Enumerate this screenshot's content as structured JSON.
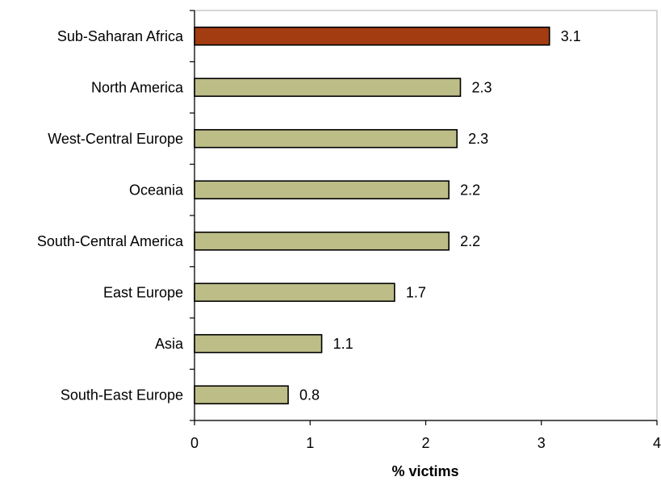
{
  "chart_data": {
    "type": "bar",
    "orientation": "horizontal",
    "categories": [
      "Sub-Saharan Africa",
      "North America",
      "West-Central Europe",
      "Oceania",
      "South-Central America",
      "East Europe",
      "Asia",
      "South-East Europe"
    ],
    "values": [
      3.07,
      2.3,
      2.27,
      2.2,
      2.2,
      1.73,
      1.1,
      0.81
    ],
    "value_labels": [
      "3.1",
      "2.3",
      "2.3",
      "2.2",
      "2.2",
      "1.7",
      "1.1",
      "0.8"
    ],
    "xlabel": "% victims",
    "xlim": [
      0,
      4
    ],
    "xticks": [
      "0",
      "1",
      "2",
      "3",
      "4"
    ],
    "highlight_index": 0,
    "colors": {
      "bar": "#bdbd88",
      "highlight": "#a33c10",
      "bar_border": "#000000",
      "plot_border": "#c9c9c9"
    },
    "grid": false,
    "legend": "none"
  }
}
